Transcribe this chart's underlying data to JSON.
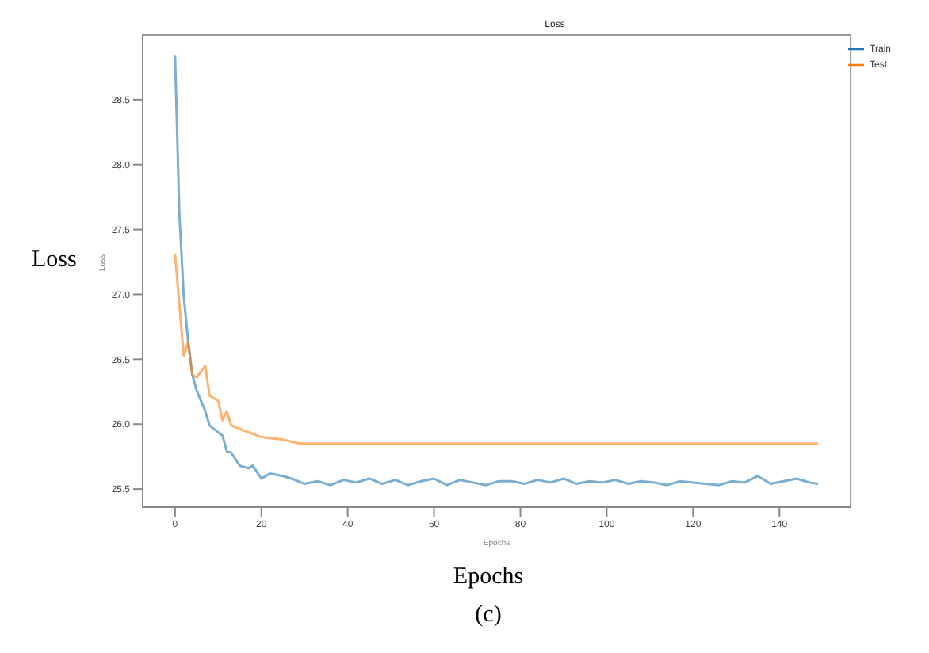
{
  "chart_data": {
    "type": "line",
    "title": "Loss",
    "xlabel": "Epochs",
    "ylabel": "Loss",
    "annotations": [
      "Loss",
      "Epochs",
      "(c)"
    ],
    "xlim": [
      -7.5,
      156.5
    ],
    "xticks": [
      0,
      20,
      40,
      60,
      80,
      100,
      120,
      140
    ],
    "ylim": [
      25.36,
      29.0
    ],
    "yticks": [
      25.5,
      {
        "value": 26,
        "label": "26.0"
      },
      26.5,
      {
        "value": 27,
        "label": "27.0"
      },
      27.5,
      {
        "value": 28,
        "label": "28.0"
      },
      28.5
    ],
    "legend": "top right",
    "series": [
      {
        "name": "Train",
        "color": "#1f77b4",
        "x": [
          0,
          1,
          2,
          3,
          4,
          5,
          7,
          8,
          11,
          12,
          13,
          15,
          17,
          18,
          20,
          22,
          25,
          27,
          30,
          33,
          36,
          39,
          42,
          45,
          48,
          51,
          54,
          57,
          60,
          63,
          66,
          69,
          72,
          75,
          78,
          81,
          84,
          87,
          90,
          93,
          96,
          99,
          102,
          105,
          108,
          111,
          114,
          117,
          120,
          123,
          126,
          129,
          132,
          135,
          138,
          141,
          144,
          147,
          149
        ],
        "values": [
          28.84,
          27.62,
          26.99,
          26.65,
          26.38,
          26.26,
          26.1,
          25.99,
          25.91,
          25.79,
          25.78,
          25.68,
          25.66,
          25.68,
          25.58,
          25.62,
          25.6,
          25.58,
          25.54,
          25.56,
          25.53,
          25.57,
          25.55,
          25.58,
          25.54,
          25.57,
          25.53,
          25.56,
          25.58,
          25.53,
          25.57,
          25.55,
          25.53,
          25.56,
          25.56,
          25.54,
          25.57,
          25.55,
          25.58,
          25.54,
          25.56,
          25.55,
          25.57,
          25.54,
          25.56,
          25.55,
          25.53,
          25.56,
          25.55,
          25.54,
          25.53,
          25.56,
          25.55,
          25.6,
          25.54,
          25.56,
          25.58,
          25.55,
          25.54
        ]
      },
      {
        "name": "Test",
        "color": "#ff7f0e",
        "x": [
          0,
          2,
          3,
          4,
          5,
          7,
          8,
          10,
          11,
          12,
          13,
          16,
          20,
          25,
          29,
          40,
          60,
          80,
          100,
          120,
          140,
          149
        ],
        "values": [
          27.31,
          26.53,
          26.63,
          26.38,
          26.36,
          26.45,
          26.22,
          26.18,
          26.03,
          26.1,
          25.99,
          25.95,
          25.9,
          25.88,
          25.85,
          25.85,
          25.85,
          25.85,
          25.85,
          25.85,
          25.85,
          25.85
        ]
      }
    ]
  }
}
